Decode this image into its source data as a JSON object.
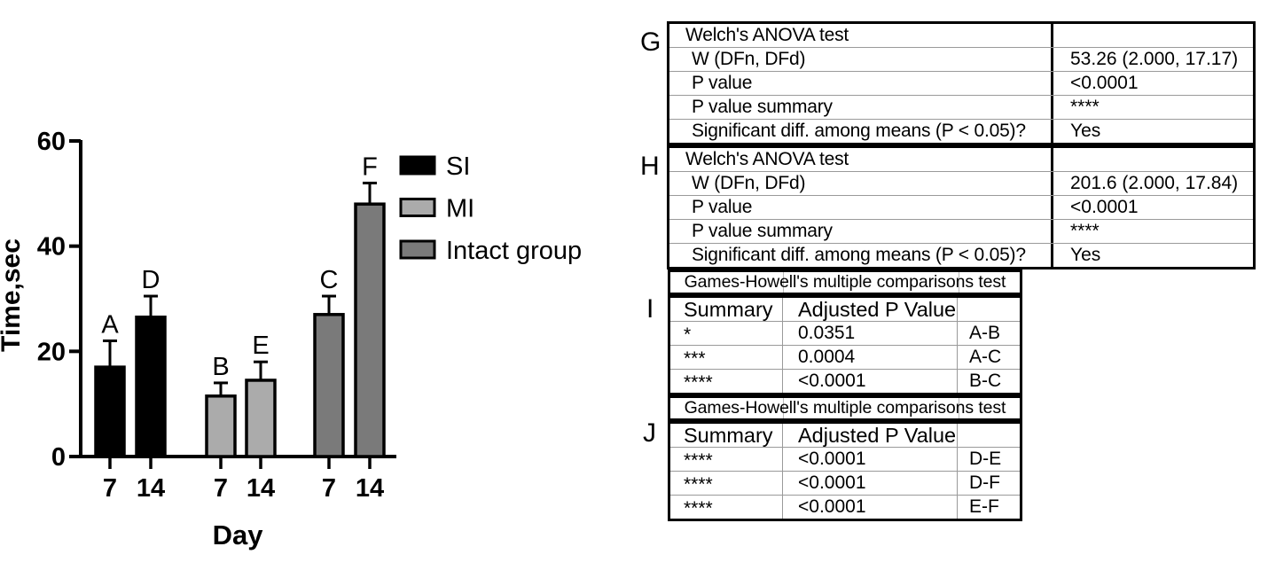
{
  "chart_data": {
    "type": "bar",
    "title": "",
    "xlabel": "Day",
    "ylabel": "Time,sec",
    "ylim": [
      0,
      60
    ],
    "yticks": [
      0,
      20,
      40,
      60
    ],
    "grid": false,
    "legend_position": "right",
    "series": [
      {
        "name": "SI",
        "color": "#000000",
        "categories": [
          "7",
          "14"
        ],
        "values": [
          17,
          26.5
        ],
        "errors": [
          5,
          4
        ],
        "letters": [
          "A",
          "D"
        ]
      },
      {
        "name": "MI",
        "color": "#ababab",
        "categories": [
          "7",
          "14"
        ],
        "values": [
          11.5,
          14.5
        ],
        "errors": [
          2.5,
          3.5
        ],
        "letters": [
          "B",
          "E"
        ]
      },
      {
        "name": "Intact group",
        "color": "#7a7a7a",
        "categories": [
          "7",
          "14"
        ],
        "values": [
          27,
          48
        ],
        "errors": [
          3.5,
          4
        ],
        "letters": [
          "C",
          "F"
        ]
      }
    ]
  },
  "tables": {
    "g": {
      "letter": "G",
      "rows": [
        [
          "Welch's ANOVA test",
          ""
        ],
        [
          "W (DFn, DFd)",
          "53.26 (2.000, 17.17)"
        ],
        [
          "P value",
          "<0.0001"
        ],
        [
          "P value summary",
          "****"
        ],
        [
          "Significant diff. among means (P < 0.05)?",
          "Yes"
        ]
      ]
    },
    "h": {
      "letter": "H",
      "rows": [
        [
          "Welch's ANOVA test",
          ""
        ],
        [
          "W (DFn, DFd)",
          "201.6 (2.000, 17.84)"
        ],
        [
          "P value",
          "<0.0001"
        ],
        [
          "P value summary",
          "****"
        ],
        [
          "Significant diff. among means (P < 0.05)?",
          "Yes"
        ]
      ]
    },
    "i": {
      "letter": "I",
      "title": "Games-Howell's multiple comparisons test",
      "header": [
        "Summary",
        "Adjusted P Value",
        ""
      ],
      "rows": [
        [
          "*",
          "0.0351",
          "A-B"
        ],
        [
          "***",
          "0.0004",
          "A-C"
        ],
        [
          "****",
          "<0.0001",
          "B-C"
        ]
      ]
    },
    "j": {
      "letter": "J",
      "title": "Games-Howell's multiple comparisons test",
      "header": [
        "Summary",
        "Adjusted P Value",
        ""
      ],
      "rows": [
        [
          "****",
          "<0.0001",
          "D-E"
        ],
        [
          "****",
          "<0.0001",
          "D-F"
        ],
        [
          "****",
          "<0.0001",
          "E-F"
        ]
      ]
    }
  }
}
